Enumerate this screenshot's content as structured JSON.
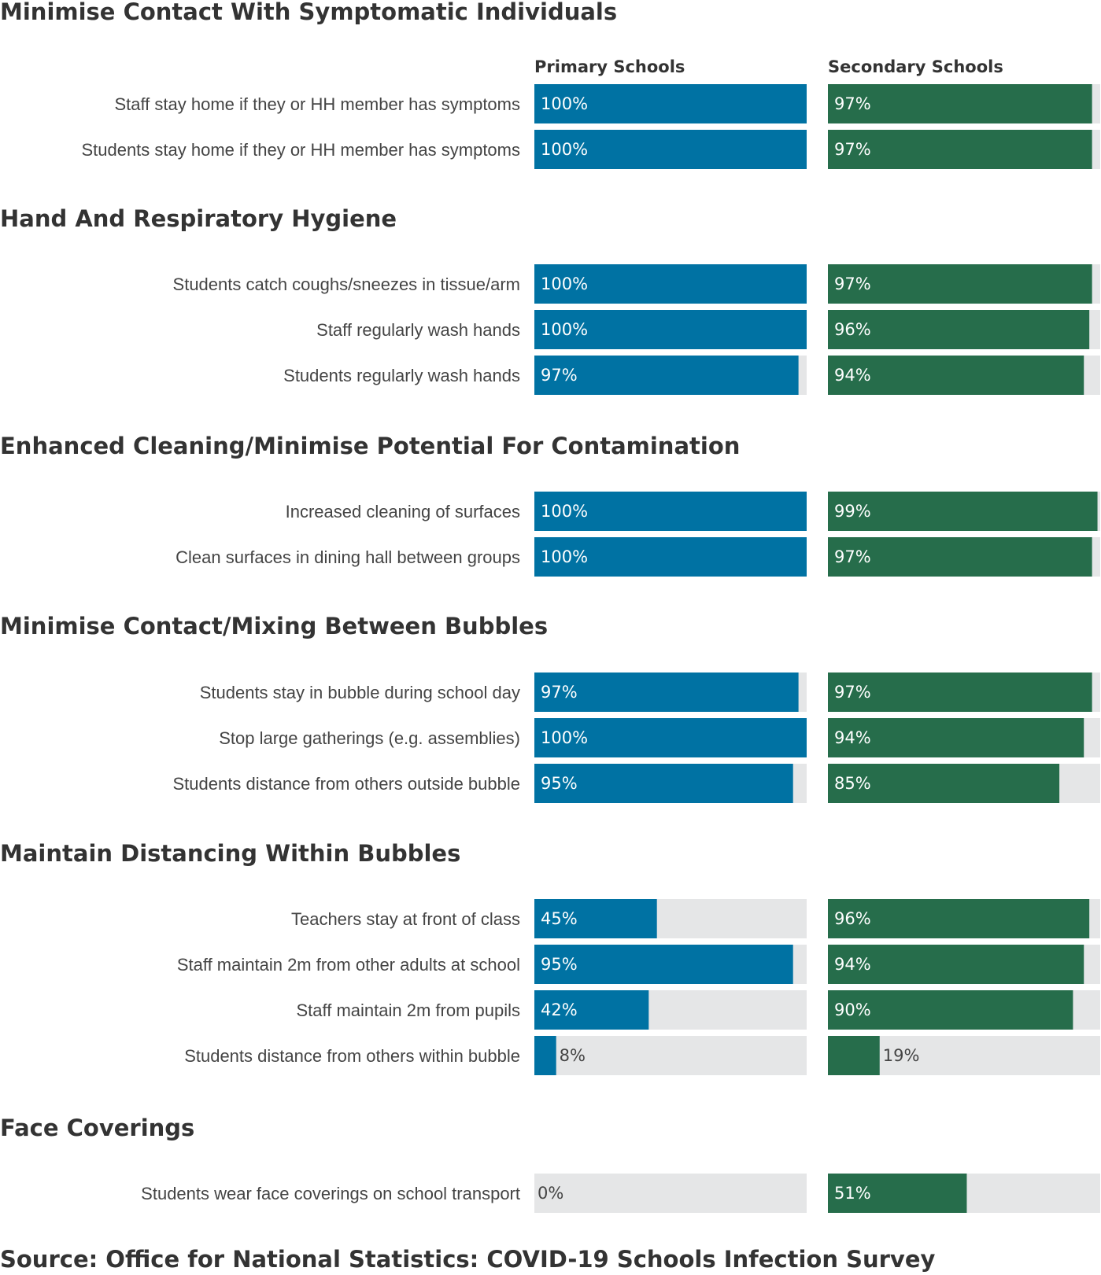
{
  "chart_data": {
    "type": "bar",
    "orientation": "horizontal",
    "columns": [
      {
        "name": "Primary Schools",
        "color": "#0072a3"
      },
      {
        "name": "Secondary Schools",
        "color": "#266d4b"
      }
    ],
    "track_color": "#e5e6e7",
    "xlim": [
      0,
      100
    ],
    "unit": "%",
    "sections": [
      {
        "title": "Minimise Contact With Symptomatic Individuals",
        "rows": [
          {
            "label": "Staff stay home if they or HH member has symptoms",
            "values": [
              100,
              97
            ]
          },
          {
            "label": "Students stay home if they or HH member has symptoms",
            "values": [
              100,
              97
            ]
          }
        ]
      },
      {
        "title": "Hand And Respiratory Hygiene",
        "rows": [
          {
            "label": "Students catch coughs/sneezes in tissue/arm",
            "values": [
              100,
              97
            ]
          },
          {
            "label": "Staff regularly wash hands",
            "values": [
              100,
              96
            ]
          },
          {
            "label": "Students regularly wash hands",
            "values": [
              97,
              94
            ]
          }
        ]
      },
      {
        "title": "Enhanced Cleaning/Minimise Potential For Contamination",
        "rows": [
          {
            "label": "Increased cleaning of surfaces",
            "values": [
              100,
              99
            ]
          },
          {
            "label": "Clean surfaces in dining hall between groups",
            "values": [
              100,
              97
            ]
          }
        ]
      },
      {
        "title": "Minimise Contact/Mixing Between Bubbles",
        "rows": [
          {
            "label": "Students stay in bubble during school day",
            "values": [
              97,
              97
            ]
          },
          {
            "label": "Stop large gatherings (e.g. assemblies)",
            "values": [
              100,
              94
            ]
          },
          {
            "label": "Students distance from others outside bubble",
            "values": [
              95,
              85
            ]
          }
        ]
      },
      {
        "title": "Maintain Distancing Within Bubbles",
        "rows": [
          {
            "label": "Teachers stay at front of class",
            "values": [
              45,
              96
            ]
          },
          {
            "label": "Staff maintain 2m from other adults at school",
            "values": [
              95,
              94
            ]
          },
          {
            "label": "Staff maintain 2m from pupils",
            "values": [
              42,
              90
            ]
          },
          {
            "label": "Students distance from others within bubble",
            "values": [
              8,
              19
            ]
          }
        ]
      },
      {
        "title": "Face Coverings",
        "rows": [
          {
            "label": "Students wear face coverings on school transport",
            "values": [
              0,
              51
            ]
          }
        ]
      }
    ],
    "source": "Source: Office for National Statistics: COVID-19 Schools Infection Survey"
  }
}
